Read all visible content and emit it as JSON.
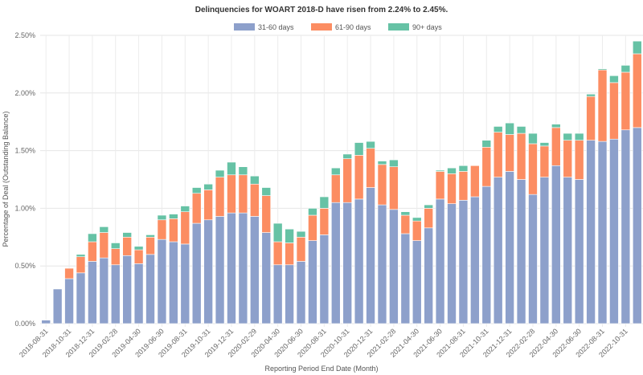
{
  "chart_data": {
    "type": "bar",
    "stacked": true,
    "title": "Delinquencies for WOART 2018-D have risen from 2.24% to 2.45%.",
    "xlabel": "Reporting Period End Date (Month)",
    "ylabel": "Percentage of Deal (Outstanding Balance)",
    "ylim": [
      0,
      2.5
    ],
    "yticks": [
      "0.00%",
      "0.50%",
      "1.00%",
      "1.50%",
      "2.00%",
      "2.50%"
    ],
    "grid": true,
    "legend_position": "top",
    "categories": [
      "2018-08-31",
      "2018-09-30",
      "2018-10-31",
      "2018-11-30",
      "2018-12-31",
      "2019-01-31",
      "2019-02-28",
      "2019-03-31",
      "2019-04-30",
      "2019-05-31",
      "2019-06-30",
      "2019-07-31",
      "2019-08-31",
      "2019-09-30",
      "2019-10-31",
      "2019-11-30",
      "2019-12-31",
      "2020-01-31",
      "2020-02-29",
      "2020-03-31",
      "2020-04-30",
      "2020-05-31",
      "2020-06-30",
      "2020-07-31",
      "2020-08-31",
      "2020-09-30",
      "2020-10-31",
      "2020-11-30",
      "2020-12-31",
      "2021-01-31",
      "2021-02-28",
      "2021-03-31",
      "2021-04-30",
      "2021-05-31",
      "2021-06-30",
      "2021-07-31",
      "2021-08-31",
      "2021-09-30",
      "2021-10-31",
      "2021-11-30",
      "2021-12-31",
      "2022-01-31",
      "2022-02-28",
      "2022-03-31",
      "2022-04-30",
      "2022-05-31",
      "2022-06-30",
      "2022-07-31",
      "2022-08-31",
      "2022-09-30",
      "2022-10-31",
      "2022-11-30"
    ],
    "series": [
      {
        "name": "31-60 days",
        "color": "#8da0cb",
        "values": [
          0.03,
          0.3,
          0.39,
          0.44,
          0.54,
          0.57,
          0.51,
          0.59,
          0.52,
          0.6,
          0.73,
          0.71,
          0.69,
          0.87,
          0.9,
          0.93,
          0.96,
          0.96,
          0.93,
          0.79,
          0.51,
          0.51,
          0.54,
          0.72,
          0.77,
          1.05,
          1.05,
          1.08,
          1.18,
          1.03,
          0.99,
          0.78,
          0.72,
          0.83,
          1.08,
          1.04,
          1.07,
          1.1,
          1.19,
          1.27,
          1.32,
          1.25,
          1.12,
          1.27,
          1.37,
          1.27,
          1.25,
          1.59,
          1.58,
          1.6,
          1.68,
          1.7
        ]
      },
      {
        "name": "61-90 days",
        "color": "#fc8d62",
        "values": [
          0.0,
          0.0,
          0.09,
          0.14,
          0.17,
          0.22,
          0.14,
          0.16,
          0.12,
          0.15,
          0.17,
          0.2,
          0.28,
          0.26,
          0.26,
          0.34,
          0.33,
          0.33,
          0.28,
          0.32,
          0.2,
          0.19,
          0.21,
          0.22,
          0.23,
          0.24,
          0.38,
          0.38,
          0.34,
          0.35,
          0.37,
          0.16,
          0.17,
          0.17,
          0.24,
          0.26,
          0.25,
          0.27,
          0.34,
          0.39,
          0.32,
          0.4,
          0.44,
          0.27,
          0.33,
          0.32,
          0.34,
          0.38,
          0.62,
          0.49,
          0.5,
          0.64
        ]
      },
      {
        "name": "90+ days",
        "color": "#66c2a5",
        "values": [
          0.0,
          0.0,
          0.0,
          0.02,
          0.07,
          0.05,
          0.05,
          0.04,
          0.03,
          0.02,
          0.04,
          0.04,
          0.05,
          0.05,
          0.05,
          0.06,
          0.11,
          0.07,
          0.07,
          0.07,
          0.16,
          0.12,
          0.05,
          0.06,
          0.1,
          0.06,
          0.04,
          0.11,
          0.06,
          0.03,
          0.06,
          0.03,
          0.03,
          0.03,
          0.01,
          0.05,
          0.05,
          0.0,
          0.06,
          0.05,
          0.1,
          0.06,
          0.09,
          0.03,
          0.03,
          0.06,
          0.06,
          0.02,
          0.01,
          0.06,
          0.06,
          0.11
        ]
      }
    ]
  }
}
